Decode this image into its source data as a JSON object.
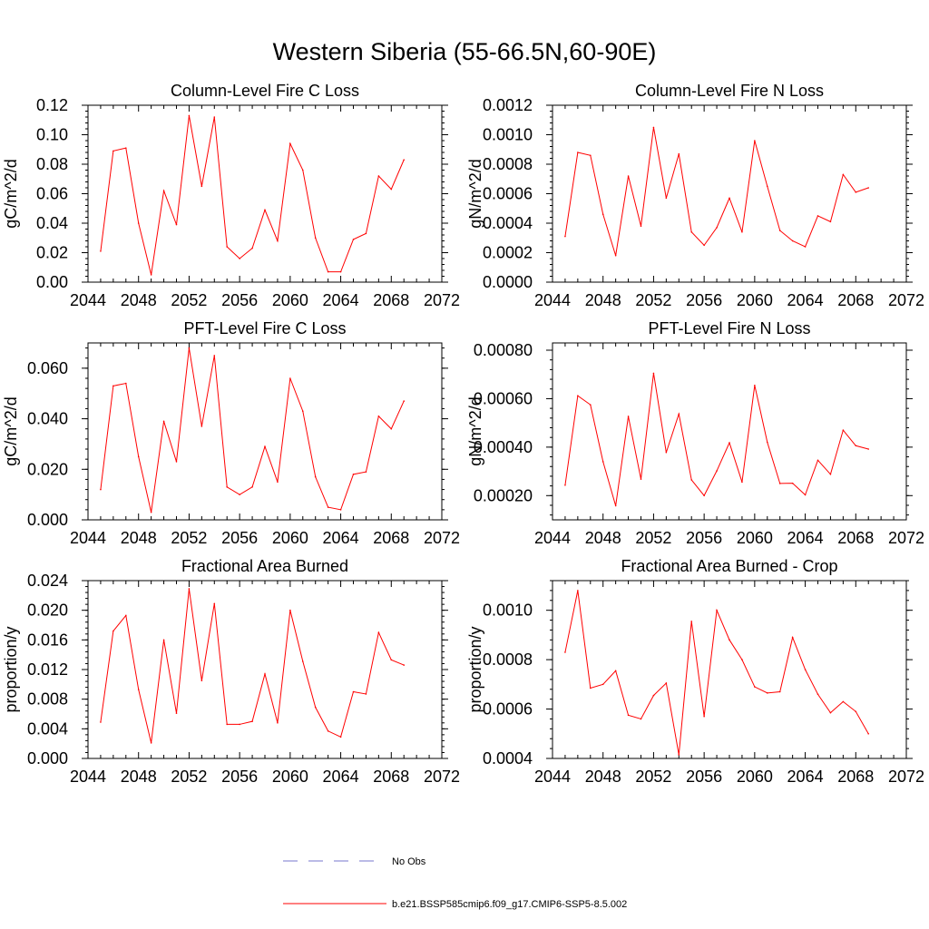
{
  "title": "Western Siberia (55-66.5N,60-90E)",
  "colors": {
    "series": "#ff0000",
    "obs": "#7777cc",
    "axis": "#000000"
  },
  "legend": {
    "placement": "bottom-center",
    "obs_label": "No Obs",
    "model_label": "b.e21.BSSP585cmip6.f09_g17.CMIP6-SSP5-8.5.002"
  },
  "chart_data": [
    {
      "type": "line",
      "title": "Column-Level Fire C Loss",
      "ylabel": "gC/m^2/d",
      "xlim": [
        2044,
        2072
      ],
      "ylim": [
        0,
        0.12
      ],
      "xticks": [
        "2044",
        "2048",
        "2052",
        "2056",
        "2060",
        "2064",
        "2068",
        "2072"
      ],
      "yticks": [
        "0.00",
        "0.02",
        "0.04",
        "0.06",
        "0.08",
        "0.10",
        "0.12"
      ],
      "series": [
        {
          "x": [
            2045,
            2046,
            2047,
            2048,
            2049,
            2050,
            2051,
            2052,
            2053,
            2054,
            2055,
            2056,
            2057,
            2058,
            2059,
            2060,
            2061,
            2062,
            2063,
            2064,
            2065,
            2066,
            2067,
            2068,
            2069
          ],
          "values": [
            0.021,
            0.089,
            0.091,
            0.04,
            0.005,
            0.062,
            0.039,
            0.113,
            0.065,
            0.112,
            0.024,
            0.016,
            0.023,
            0.049,
            0.028,
            0.094,
            0.076,
            0.03,
            0.007,
            0.007,
            0.029,
            0.033,
            0.072,
            0.063,
            0.083
          ]
        }
      ]
    },
    {
      "type": "line",
      "title": "Column-Level Fire N Loss",
      "ylabel": "gN/m^2/d",
      "xlim": [
        2044,
        2072
      ],
      "ylim": [
        0,
        0.0012
      ],
      "xticks": [
        "2044",
        "2048",
        "2052",
        "2056",
        "2060",
        "2064",
        "2068",
        "2072"
      ],
      "yticks": [
        "0.0000",
        "0.0002",
        "0.0004",
        "0.0006",
        "0.0008",
        "0.0010",
        "0.0012"
      ],
      "series": [
        {
          "x": [
            2045,
            2046,
            2047,
            2048,
            2049,
            2050,
            2051,
            2052,
            2053,
            2054,
            2055,
            2056,
            2057,
            2058,
            2059,
            2060,
            2061,
            2062,
            2063,
            2064,
            2065,
            2066,
            2067,
            2068,
            2069
          ],
          "values": [
            0.00031,
            0.00088,
            0.00086,
            0.00046,
            0.00018,
            0.00072,
            0.00038,
            0.00105,
            0.00057,
            0.00087,
            0.00034,
            0.00025,
            0.00037,
            0.00057,
            0.00034,
            0.00096,
            0.00065,
            0.00035,
            0.00028,
            0.00024,
            0.00045,
            0.00041,
            0.00073,
            0.00061,
            0.00064
          ]
        }
      ]
    },
    {
      "type": "line",
      "title": "PFT-Level Fire C Loss",
      "ylabel": "gC/m^2/d",
      "xlim": [
        2044,
        2072
      ],
      "ylim": [
        0,
        0.07
      ],
      "xticks": [
        "2044",
        "2048",
        "2052",
        "2056",
        "2060",
        "2064",
        "2068",
        "2072"
      ],
      "yticks": [
        "0.000",
        "0.020",
        "0.040",
        "0.060"
      ],
      "ytick_values": [
        0,
        0.02,
        0.04,
        0.06
      ],
      "series": [
        {
          "x": [
            2045,
            2046,
            2047,
            2048,
            2049,
            2050,
            2051,
            2052,
            2053,
            2054,
            2055,
            2056,
            2057,
            2058,
            2059,
            2060,
            2061,
            2062,
            2063,
            2064,
            2065,
            2066,
            2067,
            2068,
            2069
          ],
          "values": [
            0.012,
            0.053,
            0.054,
            0.025,
            0.003,
            0.039,
            0.023,
            0.068,
            0.037,
            0.065,
            0.013,
            0.01,
            0.013,
            0.029,
            0.015,
            0.056,
            0.043,
            0.017,
            0.005,
            0.004,
            0.018,
            0.019,
            0.041,
            0.036,
            0.047
          ]
        }
      ]
    },
    {
      "type": "line",
      "title": "PFT-Level Fire N Loss",
      "ylabel": "gN/m^2/d",
      "xlim": [
        2044,
        2072
      ],
      "ylim": [
        0.0001,
        0.00083
      ],
      "xticks": [
        "2044",
        "2048",
        "2052",
        "2056",
        "2060",
        "2064",
        "2068",
        "2072"
      ],
      "yticks": [
        "0.00020",
        "0.00040",
        "0.00060",
        "0.00080"
      ],
      "ytick_values": [
        0.0002,
        0.0004,
        0.0006,
        0.0008
      ],
      "series": [
        {
          "x": [
            2045,
            2046,
            2047,
            2048,
            2049,
            2050,
            2051,
            2052,
            2053,
            2054,
            2055,
            2056,
            2057,
            2058,
            2059,
            2060,
            2061,
            2062,
            2063,
            2064,
            2065,
            2066,
            2067,
            2068,
            2069
          ],
          "values": [
            0.000243,
            0.000612,
            0.000575,
            0.00034,
            0.000158,
            0.000527,
            0.000268,
            0.000705,
            0.000378,
            0.000537,
            0.000265,
            0.0002,
            0.000302,
            0.000418,
            0.000256,
            0.000655,
            0.00042,
            0.00025,
            0.000251,
            0.000203,
            0.000346,
            0.000288,
            0.00047,
            0.000406,
            0.000392
          ]
        }
      ]
    },
    {
      "type": "line",
      "title": "Fractional Area Burned",
      "ylabel": "proportion/y",
      "xlim": [
        2044,
        2072
      ],
      "ylim": [
        0,
        0.024
      ],
      "xticks": [
        "2044",
        "2048",
        "2052",
        "2056",
        "2060",
        "2064",
        "2068",
        "2072"
      ],
      "yticks": [
        "0.000",
        "0.004",
        "0.008",
        "0.012",
        "0.016",
        "0.020",
        "0.024"
      ],
      "series": [
        {
          "x": [
            2045,
            2046,
            2047,
            2048,
            2049,
            2050,
            2051,
            2052,
            2053,
            2054,
            2055,
            2056,
            2057,
            2058,
            2059,
            2060,
            2061,
            2062,
            2063,
            2064,
            2065,
            2066,
            2067,
            2068,
            2069
          ],
          "values": [
            0.0049,
            0.0172,
            0.0193,
            0.0093,
            0.0021,
            0.016,
            0.0061,
            0.0229,
            0.0105,
            0.0209,
            0.0046,
            0.0046,
            0.005,
            0.0114,
            0.0048,
            0.02,
            0.0131,
            0.0069,
            0.0037,
            0.0029,
            0.009,
            0.0087,
            0.017,
            0.0133,
            0.0126
          ]
        }
      ]
    },
    {
      "type": "line",
      "title": "Fractional Area Burned - Crop",
      "ylabel": "proportion/y",
      "xlim": [
        2044,
        2072
      ],
      "ylim": [
        0.0004,
        0.00112
      ],
      "xticks": [
        "2044",
        "2048",
        "2052",
        "2056",
        "2060",
        "2064",
        "2068",
        "2072"
      ],
      "yticks": [
        "0.0004",
        "0.0006",
        "0.0008",
        "0.0010"
      ],
      "ytick_values": [
        0.0004,
        0.0006,
        0.0008,
        0.001
      ],
      "series": [
        {
          "x": [
            2045,
            2046,
            2047,
            2048,
            2049,
            2050,
            2051,
            2052,
            2053,
            2054,
            2055,
            2056,
            2057,
            2058,
            2059,
            2060,
            2061,
            2062,
            2063,
            2064,
            2065,
            2066,
            2067,
            2068,
            2069
          ],
          "values": [
            0.00083,
            0.00108,
            0.000685,
            0.0007,
            0.000755,
            0.000575,
            0.00056,
            0.000655,
            0.000705,
            0.000415,
            0.000955,
            0.00057,
            0.001,
            0.00088,
            0.0008,
            0.00069,
            0.000665,
            0.00067,
            0.00089,
            0.00076,
            0.00066,
            0.000585,
            0.00063,
            0.00059,
            0.0005
          ]
        }
      ]
    }
  ]
}
